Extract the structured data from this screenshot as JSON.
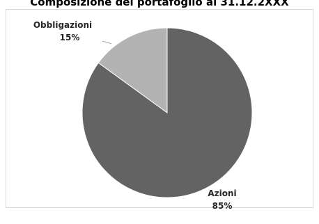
{
  "chart_data": {
    "type": "pie",
    "title": "Composizione del portafoglio al 31.12.2XXX",
    "slices": [
      {
        "label": "Azioni",
        "value": 85,
        "value_label": "85%",
        "color": "#636363"
      },
      {
        "label": "Obbligazioni",
        "value": 15,
        "value_label": "15%",
        "color": "#b3b3b3"
      }
    ],
    "start_angle_deg": 0,
    "direction": "clockwise",
    "legend": "none",
    "border_color": "#d9d9d9",
    "slice_border_color": "#ffffff"
  }
}
